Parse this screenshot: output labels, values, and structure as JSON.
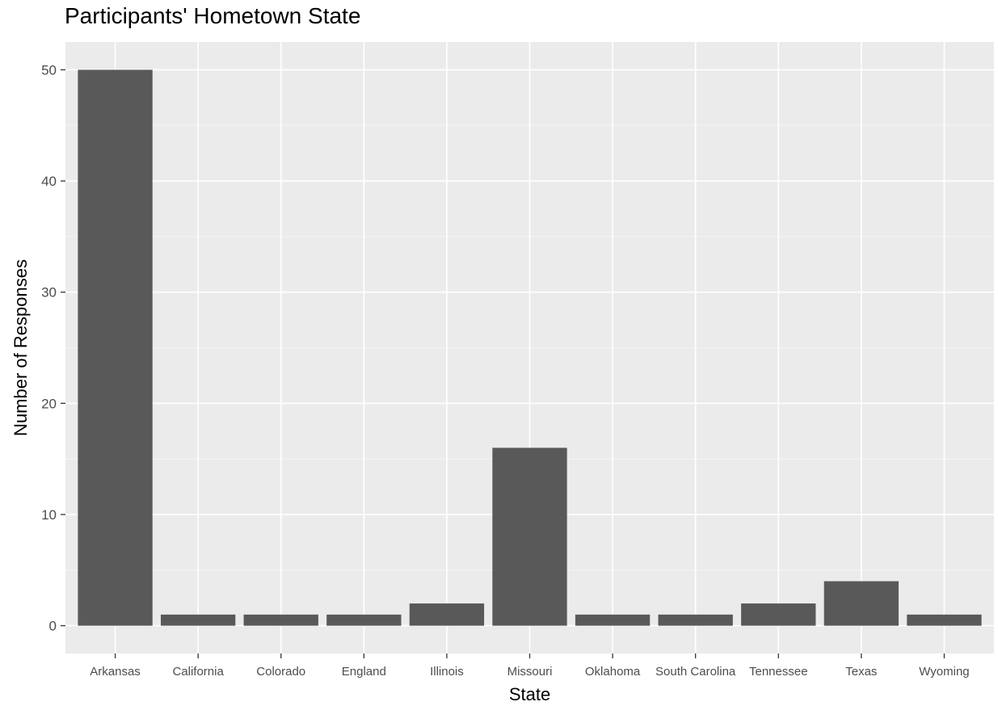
{
  "chart_data": {
    "type": "bar",
    "title": "Participants' Hometown State",
    "xlabel": "State",
    "ylabel": "Number of Responses",
    "categories": [
      "Arkansas",
      "California",
      "Colorado",
      "England",
      "Illinois",
      "Missouri",
      "Oklahoma",
      "South Carolina",
      "Tennessee",
      "Texas",
      "Wyoming"
    ],
    "values": [
      50,
      1,
      1,
      1,
      2,
      16,
      1,
      1,
      2,
      4,
      1
    ],
    "ylim": [
      -2.5,
      52.5
    ],
    "yticks": [
      0,
      10,
      20,
      30,
      40,
      50
    ],
    "grid": true,
    "legend": "none",
    "colors": {
      "bar": "#595959",
      "panel": "#ebebeb",
      "grid_major": "#ffffff",
      "grid_minor": "#f5f5f5",
      "tick_text": "#4d4d4d",
      "axis_title": "#000000"
    }
  }
}
